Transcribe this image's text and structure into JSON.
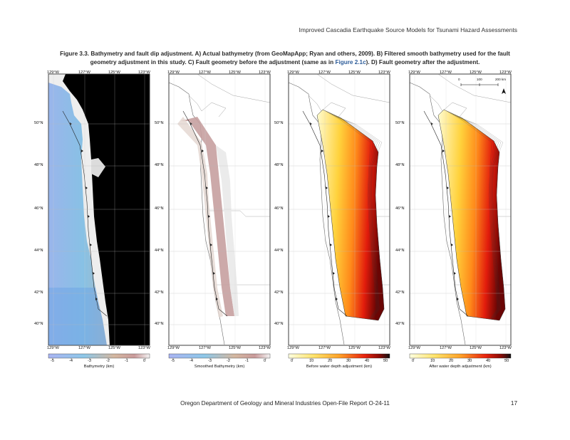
{
  "header": {
    "running_title": "Improved Cascadia Earthquake Source Models for Tsunami Hazard Assessments"
  },
  "caption": {
    "part1": "Figure 3.3. Bathymetry and fault dip adjustment. A) Actual bathymetry (from GeoMapApp; Ryan and others, 2009). B) Filtered smooth bathymetry used for the fault geometry adjustment in this study. C) Fault geometry before the adjustment (same as in ",
    "ref": "Figure 2.1c",
    "part2": "). D) Fault geometry after the adjustment."
  },
  "map": {
    "lon_ticks": [
      "129°W",
      "127°W",
      "125°W",
      "123°W"
    ],
    "lat_ticks": [
      "50°N",
      "48°N",
      "46°N",
      "44°N",
      "42°N",
      "40°N"
    ],
    "scale_bar": {
      "labels": [
        "0",
        "100",
        "200 km"
      ]
    }
  },
  "panels": [
    {
      "id": "A",
      "colorbar_title": "Bathymetry (km)",
      "colorbar_ticks": [
        "-5",
        "-4",
        "-3",
        "-2",
        "-1",
        "0"
      ],
      "palette": "bathy"
    },
    {
      "id": "B",
      "colorbar_title": "Smoothed Bathymetry (km)",
      "colorbar_ticks": [
        "-5",
        "-4",
        "-3",
        "-2",
        "-1",
        "0"
      ],
      "palette": "bathy"
    },
    {
      "id": "C",
      "colorbar_title": "Before water depth adjustment (km)",
      "colorbar_ticks": [
        "0",
        "10",
        "20",
        "30",
        "40",
        "50"
      ],
      "palette": "heat"
    },
    {
      "id": "D",
      "colorbar_title": "After water depth adjustment (km)",
      "colorbar_ticks": [
        "0",
        "10",
        "20",
        "30",
        "40",
        "50"
      ],
      "palette": "heat"
    }
  ],
  "footer": {
    "report": "Oregon Department of Geology and Mineral Industries Open-File Report O-24-11",
    "page_number": "17"
  }
}
